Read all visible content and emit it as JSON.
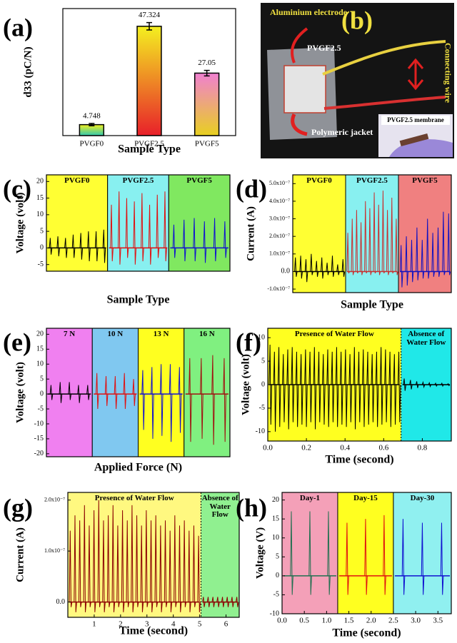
{
  "chart_data": [
    {
      "type": "bar",
      "panel_label": "(a)",
      "ylabel": "d33 (pC/N)",
      "xlabel": "Sample Type",
      "categories": [
        "PVGF0",
        "PVGF2.5",
        "PVGF5"
      ],
      "values": [
        4.748,
        47.324,
        27.05
      ],
      "errors": [
        0.5,
        1.6,
        1.2
      ],
      "colors": [
        [
          "#f2f020",
          "#30c8b0"
        ],
        [
          "#f4f020",
          "#e8202a"
        ],
        [
          "#f080d0",
          "#e8d020"
        ]
      ],
      "ylim": [
        0,
        55
      ]
    },
    {
      "type": "photo",
      "panel_label": "(b)",
      "labels": [
        "Aluminium electrode",
        "PVGF2.5",
        "Connecting wire",
        "Polymeric jacket",
        "PVGF2.5 membrane"
      ]
    },
    {
      "type": "spikes",
      "panel_label": "(c)",
      "ylabel": "Voltage (volt)",
      "xlabel": "Sample Type",
      "ylim": [
        -7,
        22
      ],
      "yticks": [
        -5,
        0,
        5,
        10,
        15,
        20
      ],
      "regions": [
        {
          "name": "PVGF0",
          "color": "#ffff33",
          "line": "#000000",
          "peaks": [
            3,
            3.5,
            3,
            4,
            4.5,
            5,
            5,
            5.5
          ],
          "troughs": [
            -2,
            -2.5,
            -3,
            -3,
            -3.5,
            -4,
            -4,
            -4.5
          ]
        },
        {
          "name": "PVGF2.5",
          "color": "#88f0f0",
          "line": "#e01010",
          "peaks": [
            13,
            17,
            15,
            14,
            16.5,
            13,
            16,
            17
          ],
          "troughs": [
            -4,
            -5,
            -3,
            -5,
            -4,
            -5,
            -3,
            -4
          ]
        },
        {
          "name": "PVGF5",
          "color": "#80e860",
          "line": "#1010d0",
          "peaks": [
            7,
            8.5,
            9,
            8,
            9,
            8
          ],
          "troughs": [
            -3,
            -4,
            -4,
            -4.5,
            -4,
            -3
          ]
        }
      ]
    },
    {
      "type": "spikes",
      "panel_label": "(d)",
      "ylabel": "Current (A)",
      "xlabel": "Sample Type",
      "ylim": [
        -1.2e-07,
        5.5e-07
      ],
      "yticks": [
        {
          "value": -1e-07,
          "label": "-1.0x10⁻⁷"
        },
        {
          "value": 0,
          "label": "0.0"
        },
        {
          "value": 1e-07,
          "label": "1.0x10⁻⁷"
        },
        {
          "value": 2e-07,
          "label": "2.0x10⁻⁷"
        },
        {
          "value": 3e-07,
          "label": "3.0x10⁻⁷"
        },
        {
          "value": 4e-07,
          "label": "4.0x10⁻⁷"
        },
        {
          "value": 5e-07,
          "label": "5.0x10⁻⁷"
        }
      ],
      "regions": [
        {
          "name": "PVGF0",
          "color": "#ffff33",
          "line": "#000000",
          "peaks": [
            8e-08,
            9e-08,
            7e-08,
            1e-07,
            6e-08,
            8e-08,
            5e-08,
            9e-08,
            4e-08,
            7e-08
          ],
          "troughs": [
            -3e-08,
            -4e-08,
            -6e-08,
            -2e-08,
            -3e-08,
            -4e-08,
            -2e-08,
            -3e-08,
            -2e-08,
            -3e-08
          ]
        },
        {
          "name": "PVGF2.5",
          "color": "#88f0f0",
          "line": "#c83030",
          "peaks": [
            2.2e-07,
            3e-07,
            3.5e-07,
            2.8e-07,
            4e-07,
            3.6e-07,
            4.5e-07,
            3.8e-07,
            4.6e-07,
            3.5e-07,
            4.2e-07,
            3e-07
          ],
          "troughs": [
            -1e-08,
            -2e-08,
            -1e-08,
            -2e-08,
            -1e-08,
            -2e-08,
            -1e-08,
            -2e-08,
            -1e-08,
            -2e-08,
            -1e-08,
            -2e-08
          ]
        },
        {
          "name": "PVGF5",
          "color": "#f08080",
          "line": "#1010c0",
          "peaks": [
            1.5e-07,
            2e-07,
            1.8e-07,
            2.5e-07,
            1.8e-07,
            3e-07,
            2.2e-07,
            2.5e-07,
            3.4e-07,
            3.3e-07
          ],
          "troughs": [
            -9e-08,
            -8e-08,
            -6e-08,
            -5e-08,
            -4e-08,
            -4e-08,
            -3e-08,
            -3e-08,
            -2e-08,
            -2e-08
          ]
        }
      ]
    },
    {
      "type": "spikes",
      "panel_label": "(e)",
      "ylabel": "Voltage (volt)",
      "xlabel": "Applied Force (N)",
      "ylim": [
        -21,
        22
      ],
      "yticks": [
        -20,
        -15,
        -10,
        -5,
        0,
        5,
        10,
        15,
        20
      ],
      "regions": [
        {
          "name": "7 N",
          "color": "#f080f0",
          "line": "#000000",
          "peaks": [
            3,
            4,
            4,
            3,
            3
          ],
          "troughs": [
            -2,
            -3,
            -2,
            -3,
            -2
          ]
        },
        {
          "name": "10 N",
          "color": "#80c8f0",
          "line": "#e01010",
          "peaks": [
            7,
            6,
            6,
            7,
            5
          ],
          "troughs": [
            -5,
            -4,
            -5,
            -5,
            -4
          ]
        },
        {
          "name": "13 N",
          "color": "#ffff20",
          "line": "#1010d0",
          "peaks": [
            8,
            9,
            10,
            10,
            9
          ],
          "troughs": [
            -12,
            -15,
            -14,
            -16,
            -13
          ]
        },
        {
          "name": "16 N",
          "color": "#80f080",
          "line": "#a01010",
          "peaks": [
            12,
            12,
            13,
            12
          ],
          "troughs": [
            -16,
            -15,
            -17,
            -16
          ]
        }
      ]
    },
    {
      "type": "spikes",
      "panel_label": "(f)",
      "ylabel": "Voltage (volt)",
      "xlabel": "Time (second)",
      "divider": "dotted",
      "xlim": [
        0,
        0.95
      ],
      "xticks": [
        {
          "value": 0,
          "label": "0.0"
        },
        0.2,
        0.4,
        0.6,
        0.8
      ],
      "ylim": [
        -12,
        12
      ],
      "yticks": [
        -10,
        -5,
        0,
        5,
        10
      ],
      "regions": [
        {
          "name": "Presence of Water Flow",
          "color": "#ffff20",
          "line": "#000000",
          "x_range": [
            0,
            0.69
          ],
          "peaks": [
            8.5,
            7,
            8,
            6.5,
            7.5,
            8,
            7,
            6.5,
            7.5,
            7,
            8,
            7,
            6.5,
            7.5,
            7,
            8,
            7,
            7.5,
            6.5,
            8,
            7,
            7.5,
            7,
            6.5,
            7,
            8,
            7.5,
            7,
            6.5,
            7
          ],
          "troughs": [
            -8.5,
            -10,
            -9,
            -8,
            -9.5,
            -8,
            -9,
            -8.5,
            -9,
            -8,
            -9.5,
            -8,
            -8.5,
            -9,
            -8,
            -9,
            -8.5,
            -9,
            -8,
            -9.5,
            -8,
            -9,
            -8.5,
            -8,
            -9,
            -8.5,
            -8,
            -9,
            -8.5,
            -8
          ]
        },
        {
          "name": "Absence of Water Flow",
          "color": "#20e8e8",
          "line": "#000000",
          "x_range": [
            0.69,
            0.95
          ],
          "peaks": [
            1.3,
            1,
            0.7,
            0.5,
            0.4,
            0.3,
            0.3,
            0.2
          ],
          "troughs": [
            -1.3,
            -1,
            -0.7,
            -0.5,
            -0.4,
            -0.3,
            -0.3,
            -0.2
          ]
        }
      ]
    },
    {
      "type": "spikes",
      "panel_label": "(g)",
      "ylabel": "Current (A)",
      "xlabel": "Time (second)",
      "divider": "dotted",
      "xlim": [
        0,
        6.5
      ],
      "xticks": [
        1,
        2,
        3,
        4,
        5,
        6
      ],
      "ylim": [
        -3e-08,
        2.15e-07
      ],
      "yticks": [
        {
          "value": 0,
          "label": "0.0"
        },
        {
          "value": 1e-07,
          "label": "1.0x10⁻⁷"
        },
        {
          "value": 2e-07,
          "label": "2.0x10⁻⁷"
        }
      ],
      "regions": [
        {
          "name": "Presence of Water Flow",
          "color": "#fff880",
          "line": "#8b0000",
          "x_range": [
            0,
            5.05
          ],
          "peaks": [
            1.4e-07,
            1.7e-07,
            1.6e-07,
            1.9e-07,
            1.5e-07,
            1.8e-07,
            2e-07,
            1.6e-07,
            1.7e-07,
            1.9e-07,
            1.5e-07,
            1.8e-07,
            1.6e-07,
            1.9e-07,
            1.7e-07,
            1.5e-07,
            1.8e-07,
            1.6e-07,
            1.7e-07,
            1.5e-07,
            1.6e-07,
            1.4e-07,
            1.7e-07,
            1.5e-07,
            1.6e-07,
            1.4e-07,
            1.5e-07,
            1.3e-07
          ],
          "troughs": [
            -1e-08,
            -2e-08,
            -1e-08,
            -2e-08,
            -1e-08,
            -2e-08,
            -1e-08,
            -2e-08,
            -1e-08,
            -2e-08,
            -1e-08,
            -2e-08,
            -1e-08,
            -2e-08,
            -1e-08,
            -2e-08,
            -1e-08,
            -2e-08,
            -1e-08,
            -2e-08,
            -1e-08,
            -2e-08,
            -1e-08,
            -2e-08,
            -1e-08,
            -2e-08,
            -1e-08,
            -2e-08
          ]
        },
        {
          "name": "Absence of Water Flow",
          "color": "#90f090",
          "line": "#8b0000",
          "x_range": [
            5.05,
            6.5
          ],
          "peaks": [
            1e-08,
            1e-08,
            1e-08,
            1e-08,
            1e-08,
            1e-08,
            1e-08,
            1e-08
          ],
          "troughs": [
            -1e-08,
            -1e-08,
            -1e-08,
            -1e-08,
            -1e-08,
            -1e-08,
            -1e-08,
            -1e-08
          ]
        }
      ]
    },
    {
      "type": "spikes",
      "panel_label": "(h)",
      "ylabel": "Voltage (V)",
      "xlabel": "Time (second)",
      "xlim": [
        0,
        3.8
      ],
      "xticks": [
        {
          "value": 0,
          "label": "0.0"
        },
        0.5,
        {
          "value": 1,
          "label": "1.0"
        },
        1.5,
        {
          "value": 2,
          "label": "2.0"
        },
        2.5,
        {
          "value": 3,
          "label": "3.0"
        },
        3.5
      ],
      "ylim": [
        -10,
        22
      ],
      "yticks": [
        -10,
        -5,
        0,
        5,
        10,
        15,
        20
      ],
      "regions": [
        {
          "name": "Day-1",
          "color": "#f4a0b8",
          "line": "#207050",
          "x_range": [
            0,
            1.25
          ],
          "peaks": [
            17,
            17,
            17
          ],
          "troughs": [
            -5,
            -5,
            -5
          ]
        },
        {
          "name": "Day-15",
          "color": "#ffff20",
          "line": "#e01010",
          "x_range": [
            1.25,
            2.5
          ],
          "peaks": [
            14,
            15,
            16
          ],
          "troughs": [
            -5,
            -5,
            -5
          ]
        },
        {
          "name": "Day-30",
          "color": "#90f0f0",
          "line": "#1010d0",
          "x_range": [
            2.5,
            3.8
          ],
          "peaks": [
            15,
            14,
            14
          ],
          "troughs": [
            -5,
            -5,
            -5
          ]
        }
      ]
    }
  ]
}
